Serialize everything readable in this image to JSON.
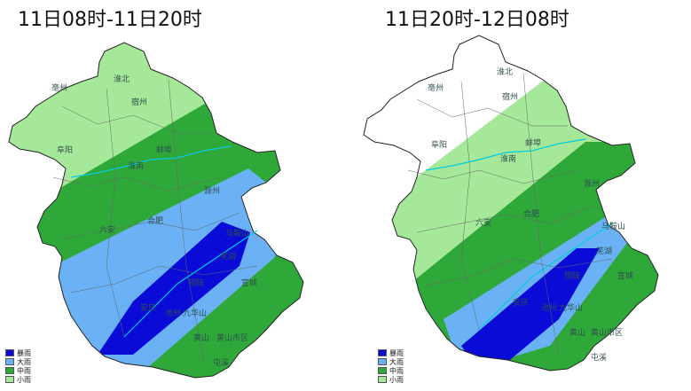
{
  "panels": [
    {
      "title": "11日08时-11日20时",
      "legend": [
        {
          "label": "暴雨",
          "color": "#0b0bd8"
        },
        {
          "label": "大雨",
          "color": "#6ab2f5"
        },
        {
          "label": "中雨",
          "color": "#2fa83a"
        },
        {
          "label": "小雨",
          "color": "#a6e89a"
        }
      ],
      "cities": [
        "亳州",
        "淮北",
        "宿州",
        "阜阳",
        "蚌埠",
        "淮南",
        "滁州",
        "合肥",
        "六安",
        "马鞍山",
        "芜湖",
        "铜陵",
        "宣城",
        "安庆",
        "池州",
        "九华山",
        "黄山",
        "屯溪",
        "黄山市区"
      ]
    },
    {
      "title": "11日20时-12日08时",
      "legend": [
        {
          "label": "暴雨",
          "color": "#0b0bd8"
        },
        {
          "label": "大雨",
          "color": "#6ab2f5"
        },
        {
          "label": "中雨",
          "color": "#2fa83a"
        },
        {
          "label": "小雨",
          "color": "#a6e89a"
        }
      ],
      "cities": [
        "淮北",
        "亳州",
        "宿州",
        "阜阳",
        "蚌埠",
        "淮南",
        "滁州",
        "合肥",
        "六安",
        "马鞍山",
        "芜湖",
        "铜陵",
        "宣城",
        "安庆",
        "池州",
        "九华山",
        "黄山",
        "屯溪",
        "黄山市区"
      ]
    }
  ]
}
